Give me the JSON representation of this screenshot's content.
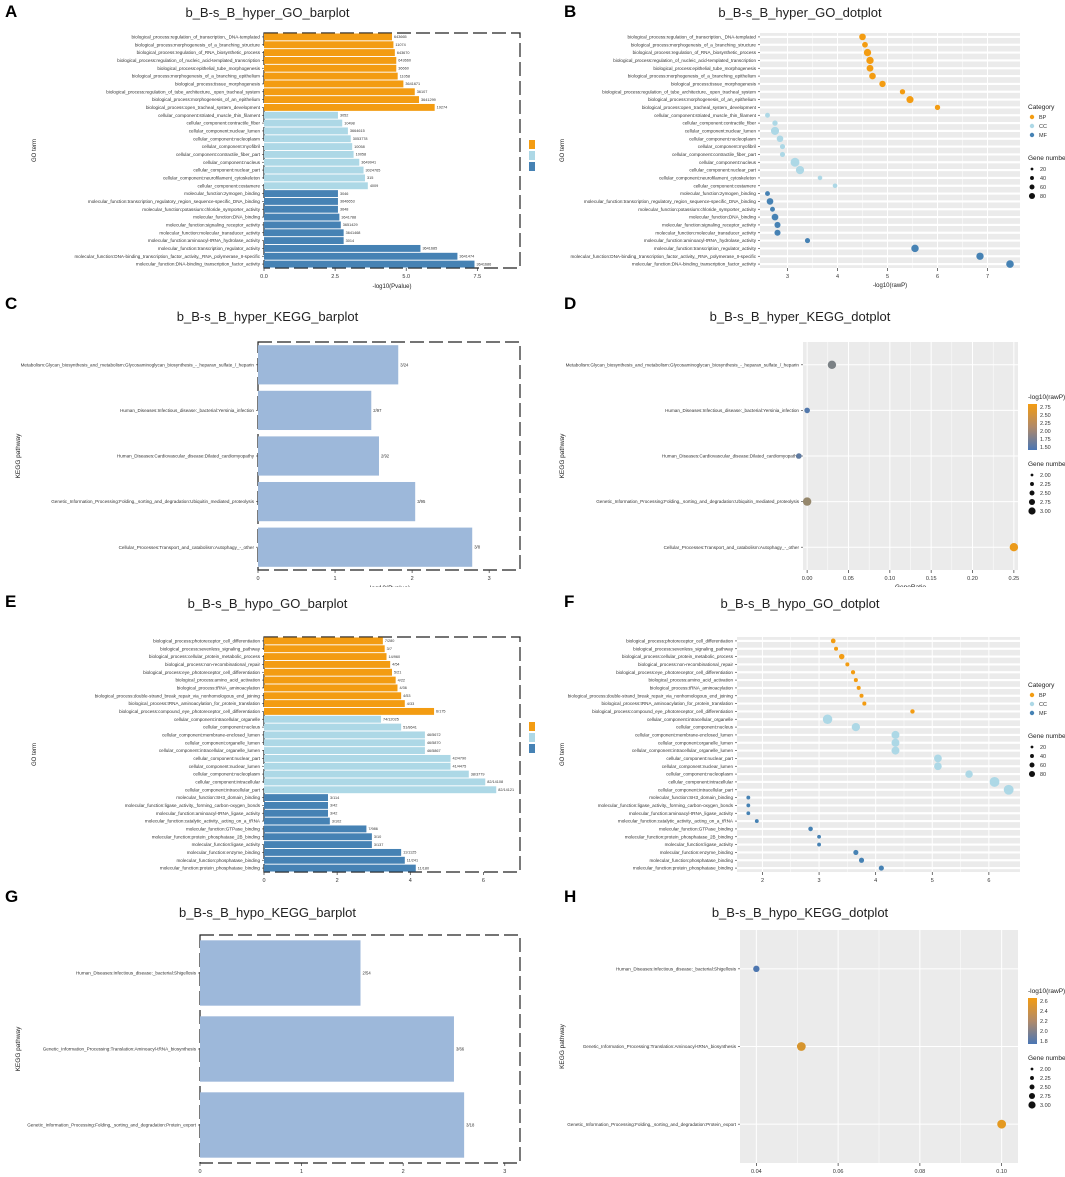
{
  "colors": {
    "BP": "#F39C12",
    "CC": "#ADD8E6",
    "MF": "#4682B4",
    "bar": "#9DB8DA",
    "panel_bg": "#EBEBEB",
    "low": "#4A76B4",
    "high": "#F39C12"
  },
  "chart_data": [
    {
      "id": "A",
      "type": "bar",
      "title": "b_B-s_B_hyper_GO_barplot",
      "xlabel": "-log10(Pvalue)",
      "ylabel": "GO term",
      "xlim": [
        0,
        9
      ],
      "xticks": [
        0.0,
        2.5,
        5.0,
        7.5
      ],
      "legend_title": "",
      "legend": [
        "BP",
        "CC",
        "MF"
      ],
      "categories": [
        "biological_process:regulation_of_transcription,_DNA-templated",
        "biological_process:morphogenesis_of_a_branching_structure",
        "biological_process:regulation_of_RNA_biosynthetic_process",
        "biological_process:regulation_of_nucleic_acid-templated_transcription",
        "biological_process:epithelial_tube_morphogenesis",
        "biological_process:morphogenesis_of_a_branching_epithelium",
        "biological_process:tissue_morphogenesis",
        "biological_process:regulation_of_tube_architecture,_open_tracheal_system",
        "biological_process:morphogenesis_of_an_epithelium",
        "biological_process:open_tracheal_system_development",
        "cellular_component:striated_muscle_thin_filament",
        "cellular_component:contractile_fiber",
        "cellular_component:nuclear_lumen",
        "cellular_component:nucleoplasm",
        "cellular_component:myofibril",
        "cellular_component:contractile_fiber_part",
        "cellular_component:nucleus",
        "cellular_component:nuclear_part",
        "cellular_component:neurofilament_cytoskeleton",
        "cellular_component:costamere",
        "molecular_function:zymogen_binding",
        "molecular_function:transcription_regulatory_region_sequence-specific_DNA_binding",
        "molecular_function:potassium:chloride_symporter_activity",
        "molecular_function:DNA_binding",
        "molecular_function:signaling_receptor_activity",
        "molecular_function:molecular_transducer_activity",
        "molecular_function:aminoacyl-tRNA_hydrolase_activity",
        "molecular_function:transcription_regulator_activity",
        "molecular_function:DNA-binding_transcription_factor_activity,_RNA_polymerase_II-specific",
        "molecular_function:DNA-binding_transcription_factor_activity"
      ],
      "values": [
        4.5,
        4.55,
        4.6,
        4.65,
        4.65,
        4.7,
        4.9,
        5.3,
        5.45,
        6.0,
        2.6,
        2.75,
        2.95,
        3.05,
        3.1,
        3.15,
        3.35,
        3.5,
        3.55,
        3.65,
        2.6,
        2.6,
        2.6,
        2.65,
        2.7,
        2.8,
        2.8,
        5.5,
        6.8,
        7.4
      ],
      "groups": [
        "BP",
        "BP",
        "BP",
        "BP",
        "BP",
        "BP",
        "BP",
        "BP",
        "BP",
        "BP",
        "CC",
        "CC",
        "CC",
        "CC",
        "CC",
        "CC",
        "CC",
        "CC",
        "CC",
        "CC",
        "MF",
        "MF",
        "MF",
        "MF",
        "MF",
        "MF",
        "MF",
        "MF",
        "MF",
        "MF"
      ],
      "labels": [
        "643665",
        "11074",
        "643670",
        "643660",
        "36660",
        "11058",
        "3641671",
        "36107",
        "3641299",
        "19274",
        "3052",
        "10498",
        "3664615",
        "3053778",
        "10058",
        "10058",
        "3649941",
        "3024765",
        "315",
        "4009",
        "3046",
        "3646653",
        "3648",
        "3641788",
        "3651429",
        "3641468",
        "3014",
        "3641685",
        "3641474",
        "3641686"
      ]
    },
    {
      "id": "B",
      "type": "scatter",
      "title": "b_B-s_B_hyper_GO_dotplot",
      "xlabel": "-log10(rawP)",
      "ylabel": "GO term",
      "xlim": [
        2.45,
        7.65
      ],
      "xticks": [
        3,
        4,
        5,
        6,
        7
      ],
      "legend_title": "Category",
      "legend": [
        "BP",
        "CC",
        "MF"
      ],
      "size_title": "Gene number",
      "size_legend": [
        20,
        40,
        60,
        80
      ],
      "categories": [
        "biological_process:regulation_of_transcription,_DNA-templated",
        "biological_process:morphogenesis_of_a_branching_structure",
        "biological_process:regulation_of_RNA_biosynthetic_process",
        "biological_process:regulation_of_nucleic_acid-templated_transcription",
        "biological_process:epithelial_tube_morphogenesis",
        "biological_process:morphogenesis_of_a_branching_epithelium",
        "biological_process:tissue_morphogenesis",
        "biological_process:regulation_of_tube_architecture,_open_tracheal_system",
        "biological_process:morphogenesis_of_an_epithelium",
        "biological_process:open_tracheal_system_development",
        "cellular_component:striated_muscle_thin_filament",
        "cellular_component:contractile_fiber",
        "cellular_component:nuclear_lumen",
        "cellular_component:nucleoplasm",
        "cellular_component:myofibril",
        "cellular_component:contractile_fiber_part",
        "cellular_component:nucleus",
        "cellular_component:nuclear_part",
        "cellular_component:neurofilament_cytoskeleton",
        "cellular_component:costamere",
        "molecular_function:zymogen_binding",
        "molecular_function:transcription_regulatory_region_sequence-specific_DNA_binding",
        "molecular_function:potassium:chloride_symporter_activity",
        "molecular_function:DNA_binding",
        "molecular_function:signaling_receptor_activity",
        "molecular_function:molecular_transducer_activity",
        "molecular_function:aminoacyl-tRNA_hydrolase_activity",
        "molecular_function:transcription_regulator_activity",
        "molecular_function:DNA-binding_transcription_factor_activity,_RNA_polymerase_II-specific",
        "molecular_function:DNA-binding_transcription_factor_activity"
      ],
      "values": [
        4.5,
        4.55,
        4.6,
        4.65,
        4.65,
        4.7,
        4.9,
        5.3,
        5.45,
        6.0,
        2.6,
        2.75,
        2.75,
        2.85,
        2.9,
        2.9,
        3.15,
        3.25,
        3.65,
        3.95,
        2.6,
        2.65,
        2.7,
        2.75,
        2.8,
        2.8,
        3.4,
        5.55,
        6.85,
        7.45
      ],
      "groups": [
        "BP",
        "BP",
        "BP",
        "BP",
        "BP",
        "BP",
        "BP",
        "BP",
        "BP",
        "BP",
        "CC",
        "CC",
        "CC",
        "CC",
        "CC",
        "CC",
        "CC",
        "CC",
        "CC",
        "CC",
        "MF",
        "MF",
        "MF",
        "MF",
        "MF",
        "MF",
        "MF",
        "MF",
        "MF",
        "MF"
      ],
      "sizes": [
        28,
        16,
        38,
        38,
        30,
        26,
        24,
        12,
        34,
        12,
        8,
        12,
        52,
        26,
        10,
        10,
        70,
        54,
        6,
        6,
        8,
        28,
        8,
        28,
        20,
        20,
        10,
        40,
        38,
        42
      ]
    },
    {
      "id": "C",
      "type": "bar",
      "title": "b_B-s_B_hyper_KEGG_barplot",
      "xlabel": "-log10(Pvalue)",
      "ylabel": "KEGG pathway",
      "xlim": [
        0,
        3.4
      ],
      "xticks": [
        0,
        1,
        2,
        3
      ],
      "categories": [
        "Metabolism:Glycan_biosynthesis_and_metabolism:Glycosaminoglycan_biosynthesis_-_heparan_sulfate_/_heparin",
        "Human_Diseases:Infectious_disease:_bacterial:Yersinia_infection",
        "Human_Diseases:Cardiovascular_disease:Dilated_cardiomyopathy",
        "Genetic_Information_Processing:Folding,_sorting_and_degradation:Ubiquitin_mediated_proteolysis",
        "Cellular_Processes:Transport_and_catabolism:Autophagy_-_other"
      ],
      "values": [
        1.82,
        1.47,
        1.57,
        2.04,
        2.78
      ],
      "labels": [
        "3/24",
        "2/97",
        "2/92",
        "3/95",
        "3/8"
      ]
    },
    {
      "id": "D",
      "type": "scatter",
      "title": "b_B-s_B_hyper_KEGG_dotplot",
      "xlabel": "GeneRatio",
      "ylabel": "KEGG pathway",
      "xlim": [
        -0.005,
        0.255
      ],
      "xticks": [
        0.0,
        0.05,
        0.1,
        0.15,
        0.2,
        0.25
      ],
      "xticklabels": [
        "0.00",
        "0.05",
        "0.10",
        "0.15",
        "0.20",
        "0.25"
      ],
      "color_title": "-log10(rawP)",
      "color_ticks": [
        "2.75",
        "2.50",
        "2.25",
        "2.00",
        "1.75",
        "1.50"
      ],
      "color_range": [
        1.4,
        2.85
      ],
      "size_title": "Gene number",
      "size_legend": [
        "2.00",
        "2.25",
        "2.50",
        "2.75",
        "3.00"
      ],
      "categories": [
        "Metabolism:Glycan_biosynthesis_and_metabolism:Glycosaminoglycan_biosynthesis_-_heparan_sulfate_/_heparin",
        "Human_Diseases:Infectious_disease:_bacterial:Yersinia_infection",
        "Human_Diseases:Cardiovascular_disease:Dilated_cardiomyopathy",
        "Genetic_Information_Processing:Folding,_sorting_and_degradation:Ubiquitin_mediated_proteolysis",
        "Cellular_Processes:Transport_and_catabolism:Autophagy_-_other"
      ],
      "values": [
        0.03,
        0.0,
        -0.01,
        0.0,
        0.25
      ],
      "color_values": [
        1.82,
        1.47,
        1.57,
        2.04,
        2.78
      ],
      "sizes": [
        3,
        2,
        2,
        3,
        3
      ]
    },
    {
      "id": "E",
      "type": "bar",
      "title": "b_B-s_B_hypo_GO_barplot",
      "xlabel": "-log10(Pvalue)",
      "ylabel": "GO term",
      "xlim": [
        0,
        7
      ],
      "xticks": [
        0,
        2,
        4,
        6
      ],
      "legend": [
        "BP",
        "CC",
        "MF"
      ],
      "categories": [
        "biological_process:photoreceptor_cell_differentiation",
        "biological_process:sevenless_signaling_pathway",
        "biological_process:cellular_protein_metabolic_process",
        "biological_process:non-recombinational_repair",
        "biological_process:eye_photoreceptor_cell_differentiation",
        "biological_process:amino_acid_activation",
        "biological_process:tRNA_aminoacylation",
        "biological_process:double-strand_break_repair_via_nonhomologous_end_joining",
        "biological_process:tRNA_aminoacylation_for_protein_translation",
        "biological_process:compound_eye_photoreceptor_cell_differentiation",
        "cellular_component:intracellular_organelle",
        "cellular_component:nucleus",
        "cellular_component:membrane-enclosed_lumen",
        "cellular_component:organelle_lumen",
        "cellular_component:intracellular_organelle_lumen",
        "cellular_component:nuclear_part",
        "cellular_component:nuclear_lumen",
        "cellular_component:nucleoplasm",
        "cellular_component:intracellular",
        "cellular_component:intracellular_part",
        "molecular_function:SH3_domain_binding",
        "molecular_function:ligase_activity,_forming_carbon-oxygen_bonds",
        "molecular_function:aminoacyl-tRNA_ligase_activity",
        "molecular_function:catalytic_activity,_acting_on_a_tRNA",
        "molecular_function:GTPase_binding",
        "molecular_function:protein_phosphatase_2B_binding",
        "molecular_function:ligase_activity",
        "molecular_function:enzyme_binding",
        "molecular_function:phosphatase_binding",
        "molecular_function:protein_phosphatase_binding"
      ],
      "values": [
        3.25,
        3.3,
        3.35,
        3.45,
        3.5,
        3.6,
        3.65,
        3.75,
        3.85,
        4.65,
        3.2,
        3.75,
        4.4,
        4.4,
        4.4,
        5.1,
        5.1,
        5.6,
        6.05,
        6.35,
        1.75,
        1.75,
        1.75,
        1.8,
        2.8,
        2.95,
        2.95,
        3.75,
        3.85,
        4.15
      ],
      "groups": [
        "BP",
        "BP",
        "BP",
        "BP",
        "BP",
        "BP",
        "BP",
        "BP",
        "BP",
        "BP",
        "CC",
        "CC",
        "CC",
        "CC",
        "CC",
        "CC",
        "CC",
        "CC",
        "CC",
        "CC",
        "MF",
        "MF",
        "MF",
        "MF",
        "MF",
        "MF",
        "MF",
        "MF",
        "MF",
        "MF"
      ],
      "labels": [
        "7/280",
        "3/7",
        "14/960",
        "4/54",
        "5/21",
        "4/22",
        "4/36",
        "4/53",
        "4/33",
        "6/175",
        "74/12025",
        "51/8641",
        "46/5672",
        "46/5870",
        "46/5867",
        "42/4790",
        "41/4475",
        "38/3779",
        "82/14108",
        "82/14121",
        "3/114",
        "3/42",
        "3/42",
        "3/102",
        "7/986",
        "3/10",
        "3/137",
        "11/1125",
        "11/241",
        "11/180"
      ]
    },
    {
      "id": "F",
      "type": "scatter",
      "title": "b_B-s_B_hypo_GO_dotplot",
      "xlabel": "-log10(rawP)",
      "ylabel": "GO term",
      "xlim": [
        1.55,
        6.55
      ],
      "xticks": [
        2,
        3,
        4,
        5,
        6
      ],
      "legend_title": "Category",
      "legend": [
        "BP",
        "CC",
        "MF"
      ],
      "size_title": "Gene number",
      "size_legend": [
        20,
        40,
        60,
        80
      ],
      "categories": [
        "biological_process:photoreceptor_cell_differentiation",
        "biological_process:sevenless_signaling_pathway",
        "biological_process:cellular_protein_metabolic_process",
        "biological_process:non-recombinational_repair",
        "biological_process:eye_photoreceptor_cell_differentiation",
        "biological_process:amino_acid_activation",
        "biological_process:tRNA_aminoacylation",
        "biological_process:double-strand_break_repair_via_nonhomologous_end_joining",
        "biological_process:tRNA_aminoacylation_for_protein_translation",
        "biological_process:compound_eye_photoreceptor_cell_differentiation",
        "cellular_component:intracellular_organelle",
        "cellular_component:nucleus",
        "cellular_component:membrane-enclosed_lumen",
        "cellular_component:organelle_lumen",
        "cellular_component:intracellular_organelle_lumen",
        "cellular_component:nuclear_part",
        "cellular_component:nuclear_lumen",
        "cellular_component:nucleoplasm",
        "cellular_component:intracellular",
        "cellular_component:intracellular_part",
        "molecular_function:SH3_domain_binding",
        "molecular_function:ligase_activity,_forming_carbon-oxygen_bonds",
        "molecular_function:aminoacyl-tRNA_ligase_activity",
        "molecular_function:catalytic_activity,_acting_on_a_tRNA",
        "molecular_function:GTPase_binding",
        "molecular_function:protein_phosphatase_2B_binding",
        "molecular_function:ligase_activity",
        "molecular_function:enzyme_binding",
        "molecular_function:phosphatase_binding",
        "molecular_function:protein_phosphatase_binding"
      ],
      "values": [
        3.25,
        3.3,
        3.4,
        3.5,
        3.6,
        3.65,
        3.7,
        3.75,
        3.8,
        4.65,
        3.15,
        3.65,
        4.35,
        4.35,
        4.35,
        5.1,
        5.1,
        5.65,
        6.1,
        6.35,
        1.75,
        1.75,
        1.75,
        1.9,
        2.85,
        3.0,
        3.0,
        3.65,
        3.75,
        4.1
      ],
      "groups": [
        "BP",
        "BP",
        "BP",
        "BP",
        "BP",
        "BP",
        "BP",
        "BP",
        "BP",
        "BP",
        "CC",
        "CC",
        "CC",
        "CC",
        "CC",
        "CC",
        "CC",
        "CC",
        "CC",
        "CC",
        "MF",
        "MF",
        "MF",
        "MF",
        "MF",
        "MF",
        "MF",
        "MF",
        "MF",
        "MF"
      ],
      "sizes": [
        8,
        4,
        14,
        4,
        5,
        4,
        4,
        4,
        4,
        6,
        74,
        51,
        46,
        46,
        46,
        42,
        41,
        38,
        82,
        82,
        3,
        3,
        3,
        3,
        7,
        3,
        3,
        11,
        11,
        11
      ]
    },
    {
      "id": "G",
      "type": "bar",
      "title": "b_B-s_B_hypo_KEGG_barplot",
      "xlabel": "-log10(Pvalue)",
      "ylabel": "KEGG pathway",
      "xlim": [
        0,
        3.15
      ],
      "xticks": [
        0,
        1,
        2,
        3
      ],
      "categories": [
        "Human_Diseases:Infectious_disease:_bacterial:Shigellosis",
        "Genetic_Information_Processing:Translation:Aminoacyl-tRNA_biosynthesis",
        "Genetic_Information_Processing:Folding,_sorting_and_degradation:Protein_export"
      ],
      "values": [
        1.58,
        2.5,
        2.6
      ],
      "labels": [
        "2/54",
        "3/66",
        "3/18"
      ]
    },
    {
      "id": "H",
      "type": "scatter",
      "title": "b_B-s_B_hypo_KEGG_dotplot",
      "xlabel": "GeneRatio",
      "ylabel": "KEGG pathway",
      "xlim": [
        0.036,
        0.104
      ],
      "xticks": [
        0.04,
        0.06,
        0.08,
        0.1
      ],
      "xticklabels": [
        "0.04",
        "0.06",
        "0.08",
        "0.10"
      ],
      "color_title": "-log10(rawP)",
      "color_ticks": [
        "2.6",
        "2.4",
        "2.2",
        "2.0",
        "1.8"
      ],
      "color_range": [
        1.55,
        2.7
      ],
      "size_title": "Gene number",
      "size_legend": [
        "2.00",
        "2.25",
        "2.50",
        "2.75",
        "3.00"
      ],
      "categories": [
        "Human_Diseases:Infectious_disease:_bacterial:Shigellosis",
        "Genetic_Information_Processing:Translation:Aminoacyl-tRNA_biosynthesis",
        "Genetic_Information_Processing:Folding,_sorting_and_degradation:Protein_export"
      ],
      "values": [
        0.04,
        0.051,
        0.1
      ],
      "color_values": [
        1.58,
        2.5,
        2.6
      ],
      "sizes": [
        2,
        3,
        3
      ]
    }
  ]
}
